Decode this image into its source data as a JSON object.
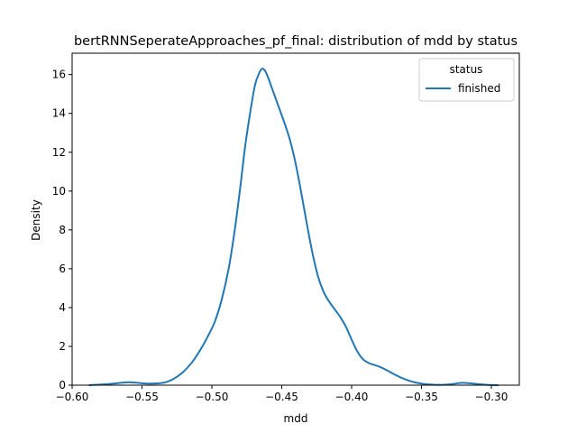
{
  "chart_data": {
    "type": "line",
    "title": "bertRNNSeperateApproaches_pf_final: distribution of mdd by status",
    "xlabel": "mdd",
    "ylabel": "Density",
    "xlim": [
      -0.6,
      -0.28
    ],
    "ylim": [
      0,
      17.1
    ],
    "x_ticks": [
      -0.6,
      -0.55,
      -0.5,
      -0.45,
      -0.4,
      -0.35,
      -0.3
    ],
    "x_tick_labels": [
      "−0.60",
      "−0.55",
      "−0.50",
      "−0.45",
      "−0.40",
      "−0.35",
      "−0.30"
    ],
    "y_ticks": [
      0,
      2,
      4,
      6,
      8,
      10,
      12,
      14,
      16
    ],
    "y_tick_labels": [
      "0",
      "2",
      "4",
      "6",
      "8",
      "10",
      "12",
      "14",
      "16"
    ],
    "grid": false,
    "legend": {
      "title": "status",
      "placement": "top-right"
    },
    "series": [
      {
        "name": "finished",
        "color": "#1f77b4",
        "x": [
          -0.588,
          -0.575,
          -0.565,
          -0.559,
          -0.553,
          -0.545,
          -0.535,
          -0.528,
          -0.521,
          -0.514,
          -0.508,
          -0.503,
          -0.498,
          -0.493,
          -0.488,
          -0.484,
          -0.48,
          -0.476,
          -0.472,
          -0.469,
          -0.466,
          -0.464,
          -0.462,
          -0.46,
          -0.458,
          -0.455,
          -0.452,
          -0.448,
          -0.444,
          -0.44,
          -0.436,
          -0.432,
          -0.428,
          -0.424,
          -0.42,
          -0.416,
          -0.412,
          -0.408,
          -0.404,
          -0.4,
          -0.396,
          -0.392,
          -0.388,
          -0.384,
          -0.38,
          -0.375,
          -0.37,
          -0.365,
          -0.36,
          -0.355,
          -0.35,
          -0.345,
          -0.34,
          -0.335,
          -0.33,
          -0.325,
          -0.32,
          -0.31,
          -0.302,
          -0.295
        ],
        "y": [
          0.0,
          0.05,
          0.12,
          0.15,
          0.12,
          0.08,
          0.12,
          0.3,
          0.65,
          1.2,
          1.85,
          2.5,
          3.25,
          4.4,
          6.0,
          7.8,
          10.0,
          12.4,
          14.3,
          15.5,
          16.1,
          16.3,
          16.2,
          15.9,
          15.5,
          14.9,
          14.3,
          13.5,
          12.6,
          11.4,
          9.9,
          8.3,
          6.8,
          5.6,
          4.8,
          4.3,
          3.9,
          3.5,
          3.0,
          2.35,
          1.75,
          1.35,
          1.15,
          1.05,
          0.95,
          0.78,
          0.58,
          0.4,
          0.26,
          0.15,
          0.08,
          0.04,
          0.02,
          0.02,
          0.04,
          0.09,
          0.12,
          0.06,
          0.01,
          0.0
        ]
      }
    ]
  }
}
